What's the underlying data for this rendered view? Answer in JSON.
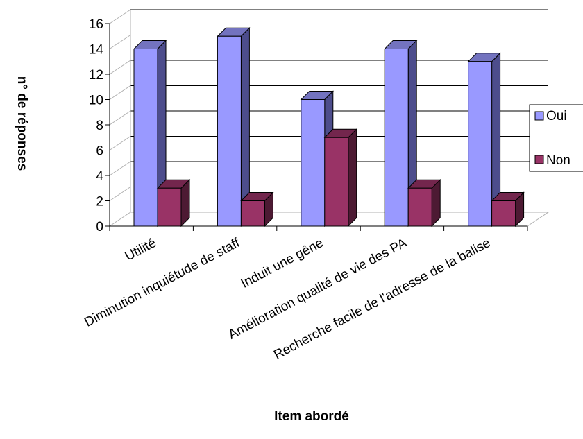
{
  "chart_data": {
    "type": "bar",
    "title": "",
    "xlabel": "Item abordé",
    "ylabel": "n° de réponses",
    "ylim": [
      0,
      16
    ],
    "yticks": [
      0,
      2,
      4,
      6,
      8,
      10,
      12,
      14,
      16
    ],
    "grid": true,
    "legend_position": "right",
    "categories": [
      "Utilité",
      "Diminution inquiétude de staff",
      "Induit une gêne",
      "Amélioration qualité de vie des PA",
      "Recherche facile de l'adresse de la balise"
    ],
    "series": [
      {
        "name": "Oui",
        "values": [
          14,
          15,
          10,
          14,
          13
        ],
        "color": "#9999ff",
        "side_color": "#4d4d8c",
        "top_color": "#7373bf"
      },
      {
        "name": "Non",
        "values": [
          3,
          2,
          7,
          3,
          2
        ],
        "color": "#993366",
        "side_color": "#4d1a33",
        "top_color": "#73264d"
      }
    ]
  }
}
